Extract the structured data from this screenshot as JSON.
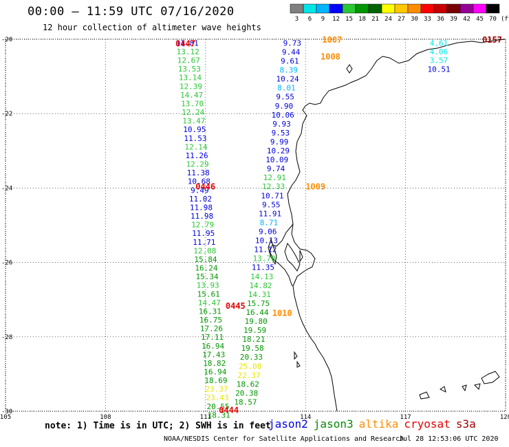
{
  "header": {
    "title": "00:00 – 11:59 UTC 07/16/2020",
    "subtitle": "12 hour collection of altimeter wave heights"
  },
  "colorbar": {
    "unit": "(ft)",
    "labels": [
      "3",
      "6",
      "9",
      "12",
      "15",
      "18",
      "21",
      "24",
      "27",
      "30",
      "33",
      "36",
      "39",
      "42",
      "45",
      "70"
    ],
    "colors": [
      "#808080",
      "#00e6e6",
      "#00b4ff",
      "#0000ff",
      "#28c832",
      "#009600",
      "#006400",
      "#ffff00",
      "#ffc800",
      "#ff8c00",
      "#ff0000",
      "#c80000",
      "#780000",
      "#960096",
      "#ff00ff",
      "#000000"
    ]
  },
  "axes": {
    "lon_labels": [
      "105",
      "108",
      "111",
      "114",
      "117",
      "120"
    ],
    "lat_labels": [
      "-20",
      "-22",
      "-24",
      "-26",
      "-28",
      "-30"
    ],
    "lon_range": [
      105,
      120
    ],
    "lat_range": [
      -30,
      -20
    ]
  },
  "satellites": [
    {
      "name": "jason2",
      "color": "#0000dc"
    },
    {
      "name": "jason3",
      "color": "#008c00"
    },
    {
      "name": "altika",
      "color": "#ff8c00"
    },
    {
      "name": "cryosat",
      "color": "#e60000"
    },
    {
      "name": "s3a",
      "color": "#a00000"
    }
  ],
  "pass_labels": [
    {
      "text": "0447",
      "color": "#e60000",
      "lon": 110.1,
      "lat": -20.1
    },
    {
      "text": "0446",
      "color": "#e60000",
      "lon": 110.7,
      "lat": -23.95
    },
    {
      "text": "0445",
      "color": "#e60000",
      "lon": 111.6,
      "lat": -27.15
    },
    {
      "text": "0444",
      "color": "#e60000",
      "lon": 111.4,
      "lat": -29.95
    },
    {
      "text": "1007",
      "color": "#ff8c00",
      "lon": 114.5,
      "lat": -20.0
    },
    {
      "text": "1008",
      "color": "#ff8c00",
      "lon": 114.45,
      "lat": -20.45
    },
    {
      "text": "1009",
      "color": "#ff8c00",
      "lon": 114.0,
      "lat": -23.95
    },
    {
      "text": "1010",
      "color": "#ff8c00",
      "lon": 113.0,
      "lat": -27.35
    },
    {
      "text": "0157",
      "color": "#a00000",
      "lon": 119.3,
      "lat": -20.0
    }
  ],
  "tracks": [
    {
      "id": "cryosat-0447-0446",
      "start": [
        110.45,
        -20.1
      ],
      "end": [
        111.4,
        -30.1
      ],
      "values": [
        "11.81",
        "13.12",
        "12.67",
        "13.53",
        "13.14",
        "12.39",
        "14.47",
        "13.70",
        "12.24",
        "13.47",
        "10.95",
        "11.53",
        "12.14",
        "11.26",
        "12.29",
        "11.38",
        "10.68",
        "9.49",
        "11.02",
        "11.98",
        "11.98",
        "12.79",
        "11.95",
        "11.71",
        "12.08",
        "15.84",
        "16.24",
        "15.34",
        "13.93",
        "15.61",
        "14.47",
        "16.31",
        "16.75",
        "17.26",
        "17.11",
        "16.94",
        "17.43",
        "18.82",
        "16.94",
        "18.69",
        "23.37",
        "23.43",
        "20.55",
        "18.31"
      ],
      "colors": [
        "#0000dc",
        "#28c832",
        "#28c832",
        "#28c832",
        "#28c832",
        "#28c832",
        "#28c832",
        "#28c832",
        "#28c832",
        "#28c832",
        "#0000dc",
        "#0000dc",
        "#28c832",
        "#0000dc",
        "#28c832",
        "#0000dc",
        "#0000dc",
        "#0000dc",
        "#0000dc",
        "#0000dc",
        "#0000dc",
        "#28c832",
        "#0000dc",
        "#0000dc",
        "#28c832",
        "#009600",
        "#009600",
        "#009600",
        "#28c832",
        "#009600",
        "#28c832",
        "#009600",
        "#009600",
        "#009600",
        "#009600",
        "#009600",
        "#009600",
        "#009600",
        "#009600",
        "#009600",
        "#e6e600",
        "#e6e600",
        "#009600",
        "#009600"
      ]
    },
    {
      "id": "altika-1010-1009",
      "start": [
        113.6,
        -20.1
      ],
      "end": [
        112.2,
        -29.75
      ],
      "values": [
        "9.73",
        "9.44",
        "9.61",
        "8.39",
        "10.24",
        "8.01",
        "9.55",
        "9.90",
        "10.06",
        "9.93",
        "9.53",
        "9.99",
        "10.29",
        "10.09",
        "9.74",
        "12.91",
        "12.33",
        "10.71",
        "9.55",
        "11.91",
        "8.71",
        "9.06",
        "10.13",
        "11.12",
        "13.70",
        "11.35",
        "14.13",
        "14.82",
        "14.31",
        "15.75",
        "16.44",
        "19.80",
        "19.59",
        "18.21",
        "19.58",
        "20.33",
        "25.08",
        "22.37",
        "18.62",
        "20.38",
        "18.57"
      ],
      "colors": [
        "#0000dc",
        "#0000dc",
        "#0000dc",
        "#00b4ff",
        "#0000dc",
        "#00b4ff",
        "#0000dc",
        "#0000dc",
        "#0000dc",
        "#0000dc",
        "#0000dc",
        "#0000dc",
        "#0000dc",
        "#0000dc",
        "#0000dc",
        "#28c832",
        "#28c832",
        "#0000dc",
        "#0000dc",
        "#0000dc",
        "#00b4ff",
        "#0000dc",
        "#0000dc",
        "#0000dc",
        "#28c832",
        "#0000dc",
        "#28c832",
        "#28c832",
        "#28c832",
        "#009600",
        "#009600",
        "#009600",
        "#009600",
        "#009600",
        "#009600",
        "#009600",
        "#e6e600",
        "#e6e600",
        "#009600",
        "#009600",
        "#009600"
      ]
    },
    {
      "id": "s3a-0157",
      "start": [
        118.0,
        -20.1
      ],
      "end": [
        118.0,
        -20.8
      ],
      "values": [
        "4.61",
        "4.06",
        "3.57",
        "10.51"
      ],
      "colors": [
        "#00e6e6",
        "#00e6e6",
        "#00e6e6",
        "#0000dc"
      ]
    }
  ],
  "footer": {
    "note": "note: 1) Time is in UTC; 2) SWH is in feet",
    "credit": "NOAA/NESDIS Center for Satellite Applications and Research",
    "date": "Jul 28 12:53:06 UTC 2020"
  }
}
